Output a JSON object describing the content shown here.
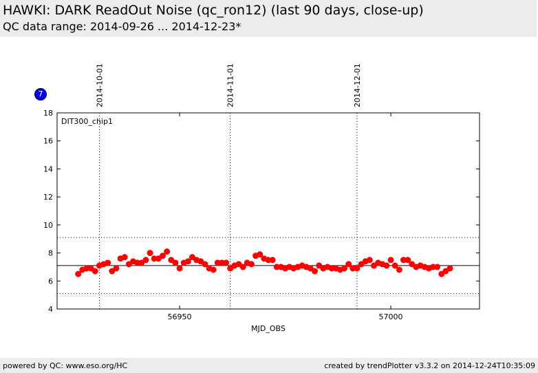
{
  "header": {
    "title": "HAWKI: DARK ReadOut Noise (qc_ron12) (last 90 days, close-up)",
    "subtitle": "QC data range: 2014-09-26 ... 2014-12-23*"
  },
  "badge": {
    "text": "7",
    "color": "#0000ee"
  },
  "footer": {
    "left": "powered by QC: www.eso.org/HC",
    "right": "created by trendPlotter v3.3.2 on 2014-12-24T10:35:09"
  },
  "chart_data": {
    "type": "scatter",
    "title": "",
    "xlabel": "MJD_OBS",
    "ylabel": "",
    "panel_label": "DIT300_chip1",
    "xlim": [
      56921,
      57021
    ],
    "ylim": [
      4,
      18
    ],
    "x_ticks": [
      56950,
      57000
    ],
    "x_tick_labels": [
      "56950",
      "57000"
    ],
    "y_ticks": [
      4,
      6,
      8,
      10,
      12,
      14,
      16,
      18
    ],
    "y_tick_labels": [
      "4",
      "6",
      "8",
      "10",
      "12",
      "14",
      "16",
      "18"
    ],
    "date_markers": [
      {
        "x": 56931,
        "label": "2014-10-01"
      },
      {
        "x": 56962,
        "label": "2014-11-01"
      },
      {
        "x": 56992,
        "label": "2014-12-01"
      }
    ],
    "reference_line": 7.1,
    "threshold_lines": [
      9.1,
      5.1
    ],
    "marker_color": "#ff0000",
    "series": [
      {
        "points": [
          [
            56926.0,
            6.5
          ],
          [
            56927.0,
            6.8
          ],
          [
            56928.0,
            6.9
          ],
          [
            56929.0,
            6.9
          ],
          [
            56930.0,
            6.7
          ],
          [
            56931.0,
            7.1
          ],
          [
            56932.0,
            7.2
          ],
          [
            56933.0,
            7.3
          ],
          [
            56934.0,
            6.7
          ],
          [
            56935.0,
            6.9
          ],
          [
            56936.0,
            7.6
          ],
          [
            56937.0,
            7.7
          ],
          [
            56938.0,
            7.2
          ],
          [
            56939.0,
            7.4
          ],
          [
            56940.0,
            7.3
          ],
          [
            56941.0,
            7.3
          ],
          [
            56942.0,
            7.5
          ],
          [
            56943.0,
            8.0
          ],
          [
            56944.0,
            7.6
          ],
          [
            56945.0,
            7.6
          ],
          [
            56946.0,
            7.8
          ],
          [
            56947.0,
            8.1
          ],
          [
            56948.0,
            7.5
          ],
          [
            56949.0,
            7.3
          ],
          [
            56950.0,
            6.9
          ],
          [
            56951.0,
            7.3
          ],
          [
            56952.0,
            7.4
          ],
          [
            56953.0,
            7.7
          ],
          [
            56954.0,
            7.5
          ],
          [
            56955.0,
            7.4
          ],
          [
            56956.0,
            7.2
          ],
          [
            56957.0,
            6.9
          ],
          [
            56958.0,
            6.8
          ],
          [
            56959.0,
            7.3
          ],
          [
            56960.0,
            7.3
          ],
          [
            56961.0,
            7.3
          ],
          [
            56962.0,
            6.9
          ],
          [
            56963.0,
            7.1
          ],
          [
            56964.0,
            7.2
          ],
          [
            56965.0,
            7.0
          ],
          [
            56966.0,
            7.3
          ],
          [
            56967.0,
            7.2
          ],
          [
            56968.0,
            7.8
          ],
          [
            56969.0,
            7.9
          ],
          [
            56970.0,
            7.6
          ],
          [
            56971.0,
            7.5
          ],
          [
            56972.0,
            7.5
          ],
          [
            56973.0,
            7.0
          ],
          [
            56974.0,
            7.0
          ],
          [
            56975.0,
            6.9
          ],
          [
            56976.0,
            7.0
          ],
          [
            56977.0,
            6.9
          ],
          [
            56978.0,
            7.0
          ],
          [
            56979.0,
            7.1
          ],
          [
            56980.0,
            7.0
          ],
          [
            56981.0,
            6.9
          ],
          [
            56982.0,
            6.7
          ],
          [
            56983.0,
            7.1
          ],
          [
            56984.0,
            6.9
          ],
          [
            56985.0,
            7.0
          ],
          [
            56986.0,
            6.9
          ],
          [
            56987.0,
            6.9
          ],
          [
            56988.0,
            6.8
          ],
          [
            56989.0,
            6.9
          ],
          [
            56990.0,
            7.2
          ],
          [
            56991.0,
            6.9
          ],
          [
            56992.0,
            6.9
          ],
          [
            56993.0,
            7.2
          ],
          [
            56994.0,
            7.4
          ],
          [
            56995.0,
            7.5
          ],
          [
            56996.0,
            7.1
          ],
          [
            56997.0,
            7.3
          ],
          [
            56998.0,
            7.2
          ],
          [
            56999.0,
            7.1
          ],
          [
            57000.0,
            7.5
          ],
          [
            57001.0,
            7.1
          ],
          [
            57002.0,
            6.8
          ],
          [
            57003.0,
            7.5
          ],
          [
            57004.0,
            7.5
          ],
          [
            57005.0,
            7.2
          ],
          [
            57006.0,
            7.0
          ],
          [
            57007.0,
            7.1
          ],
          [
            57008.0,
            7.0
          ],
          [
            57009.0,
            6.9
          ],
          [
            57010.0,
            7.0
          ],
          [
            57011.0,
            7.0
          ],
          [
            57012.0,
            6.5
          ],
          [
            57013.0,
            6.7
          ],
          [
            57014.0,
            6.9
          ]
        ]
      }
    ]
  }
}
